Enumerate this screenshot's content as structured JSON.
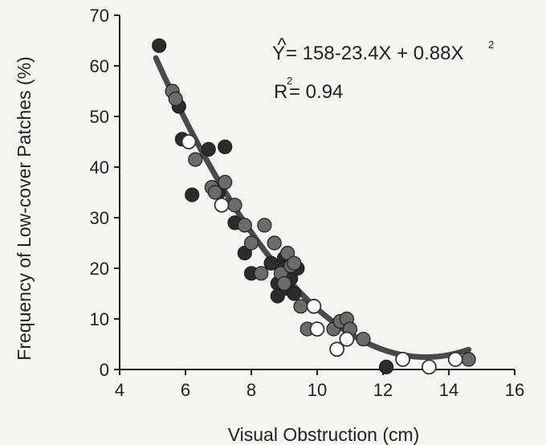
{
  "chart_data": {
    "type": "scatter",
    "xlabel": "Visual Obstruction (cm)",
    "ylabel": "Frequency of Low-cover Patches (%)",
    "xlim": [
      4,
      16
    ],
    "ylim": [
      0,
      70
    ],
    "xticks": [
      "4",
      "6",
      "8",
      "10",
      "12",
      "14",
      "16"
    ],
    "yticks": [
      "0",
      "10",
      "20",
      "30",
      "40",
      "50",
      "60",
      "70"
    ],
    "grid": false,
    "equation": {
      "lhs": "Y",
      "hat": "^",
      "rhs": "= 158-23.4X + 0.88X",
      "exp": "2"
    },
    "r_squared": {
      "label": "R",
      "exp": "2",
      "value": "= 0.94"
    },
    "fit": {
      "a": 158,
      "b": -23.4,
      "c": 0.88,
      "x_range": [
        5.1,
        14.6
      ]
    },
    "colors": {
      "dark": "#2c2c2c",
      "gray": "#6b6b6b",
      "open": "#ffffff",
      "curve": "#4a4a4a"
    },
    "series": [
      {
        "style": "dark",
        "points": [
          [
            5.2,
            64
          ],
          [
            5.8,
            52
          ],
          [
            5.9,
            45.5
          ],
          [
            6.2,
            34.5
          ],
          [
            6.7,
            43.5
          ],
          [
            7.0,
            35
          ],
          [
            7.2,
            44
          ],
          [
            7.5,
            29
          ],
          [
            7.8,
            23
          ],
          [
            8.0,
            19
          ],
          [
            8.6,
            21
          ],
          [
            8.8,
            17
          ],
          [
            8.8,
            14.5
          ],
          [
            9.0,
            22
          ],
          [
            9.0,
            20
          ],
          [
            9.1,
            16
          ],
          [
            9.2,
            18
          ],
          [
            9.3,
            15
          ],
          [
            9.4,
            20
          ],
          [
            12.1,
            0.5
          ]
        ]
      },
      {
        "style": "gray",
        "points": [
          [
            5.6,
            55
          ],
          [
            5.7,
            53.5
          ],
          [
            6.3,
            41.5
          ],
          [
            6.8,
            36
          ],
          [
            6.9,
            35
          ],
          [
            7.2,
            37
          ],
          [
            7.5,
            32.5
          ],
          [
            7.8,
            28.5
          ],
          [
            8.0,
            25
          ],
          [
            8.3,
            19
          ],
          [
            8.4,
            28.5
          ],
          [
            8.7,
            25
          ],
          [
            8.9,
            19
          ],
          [
            9.0,
            17
          ],
          [
            9.1,
            23
          ],
          [
            9.2,
            20.5
          ],
          [
            9.3,
            21
          ],
          [
            9.5,
            12.5
          ],
          [
            9.7,
            8
          ],
          [
            10.5,
            8
          ],
          [
            10.7,
            9.5
          ],
          [
            10.9,
            10
          ],
          [
            11.0,
            8
          ],
          [
            11.4,
            6
          ],
          [
            14.6,
            2
          ]
        ]
      },
      {
        "style": "open",
        "points": [
          [
            6.1,
            45
          ],
          [
            7.1,
            32.5
          ],
          [
            9.9,
            12.5
          ],
          [
            10.0,
            8
          ],
          [
            10.6,
            4
          ],
          [
            10.9,
            6
          ],
          [
            12.6,
            2
          ],
          [
            13.4,
            0.5
          ],
          [
            14.2,
            2
          ]
        ]
      }
    ]
  }
}
